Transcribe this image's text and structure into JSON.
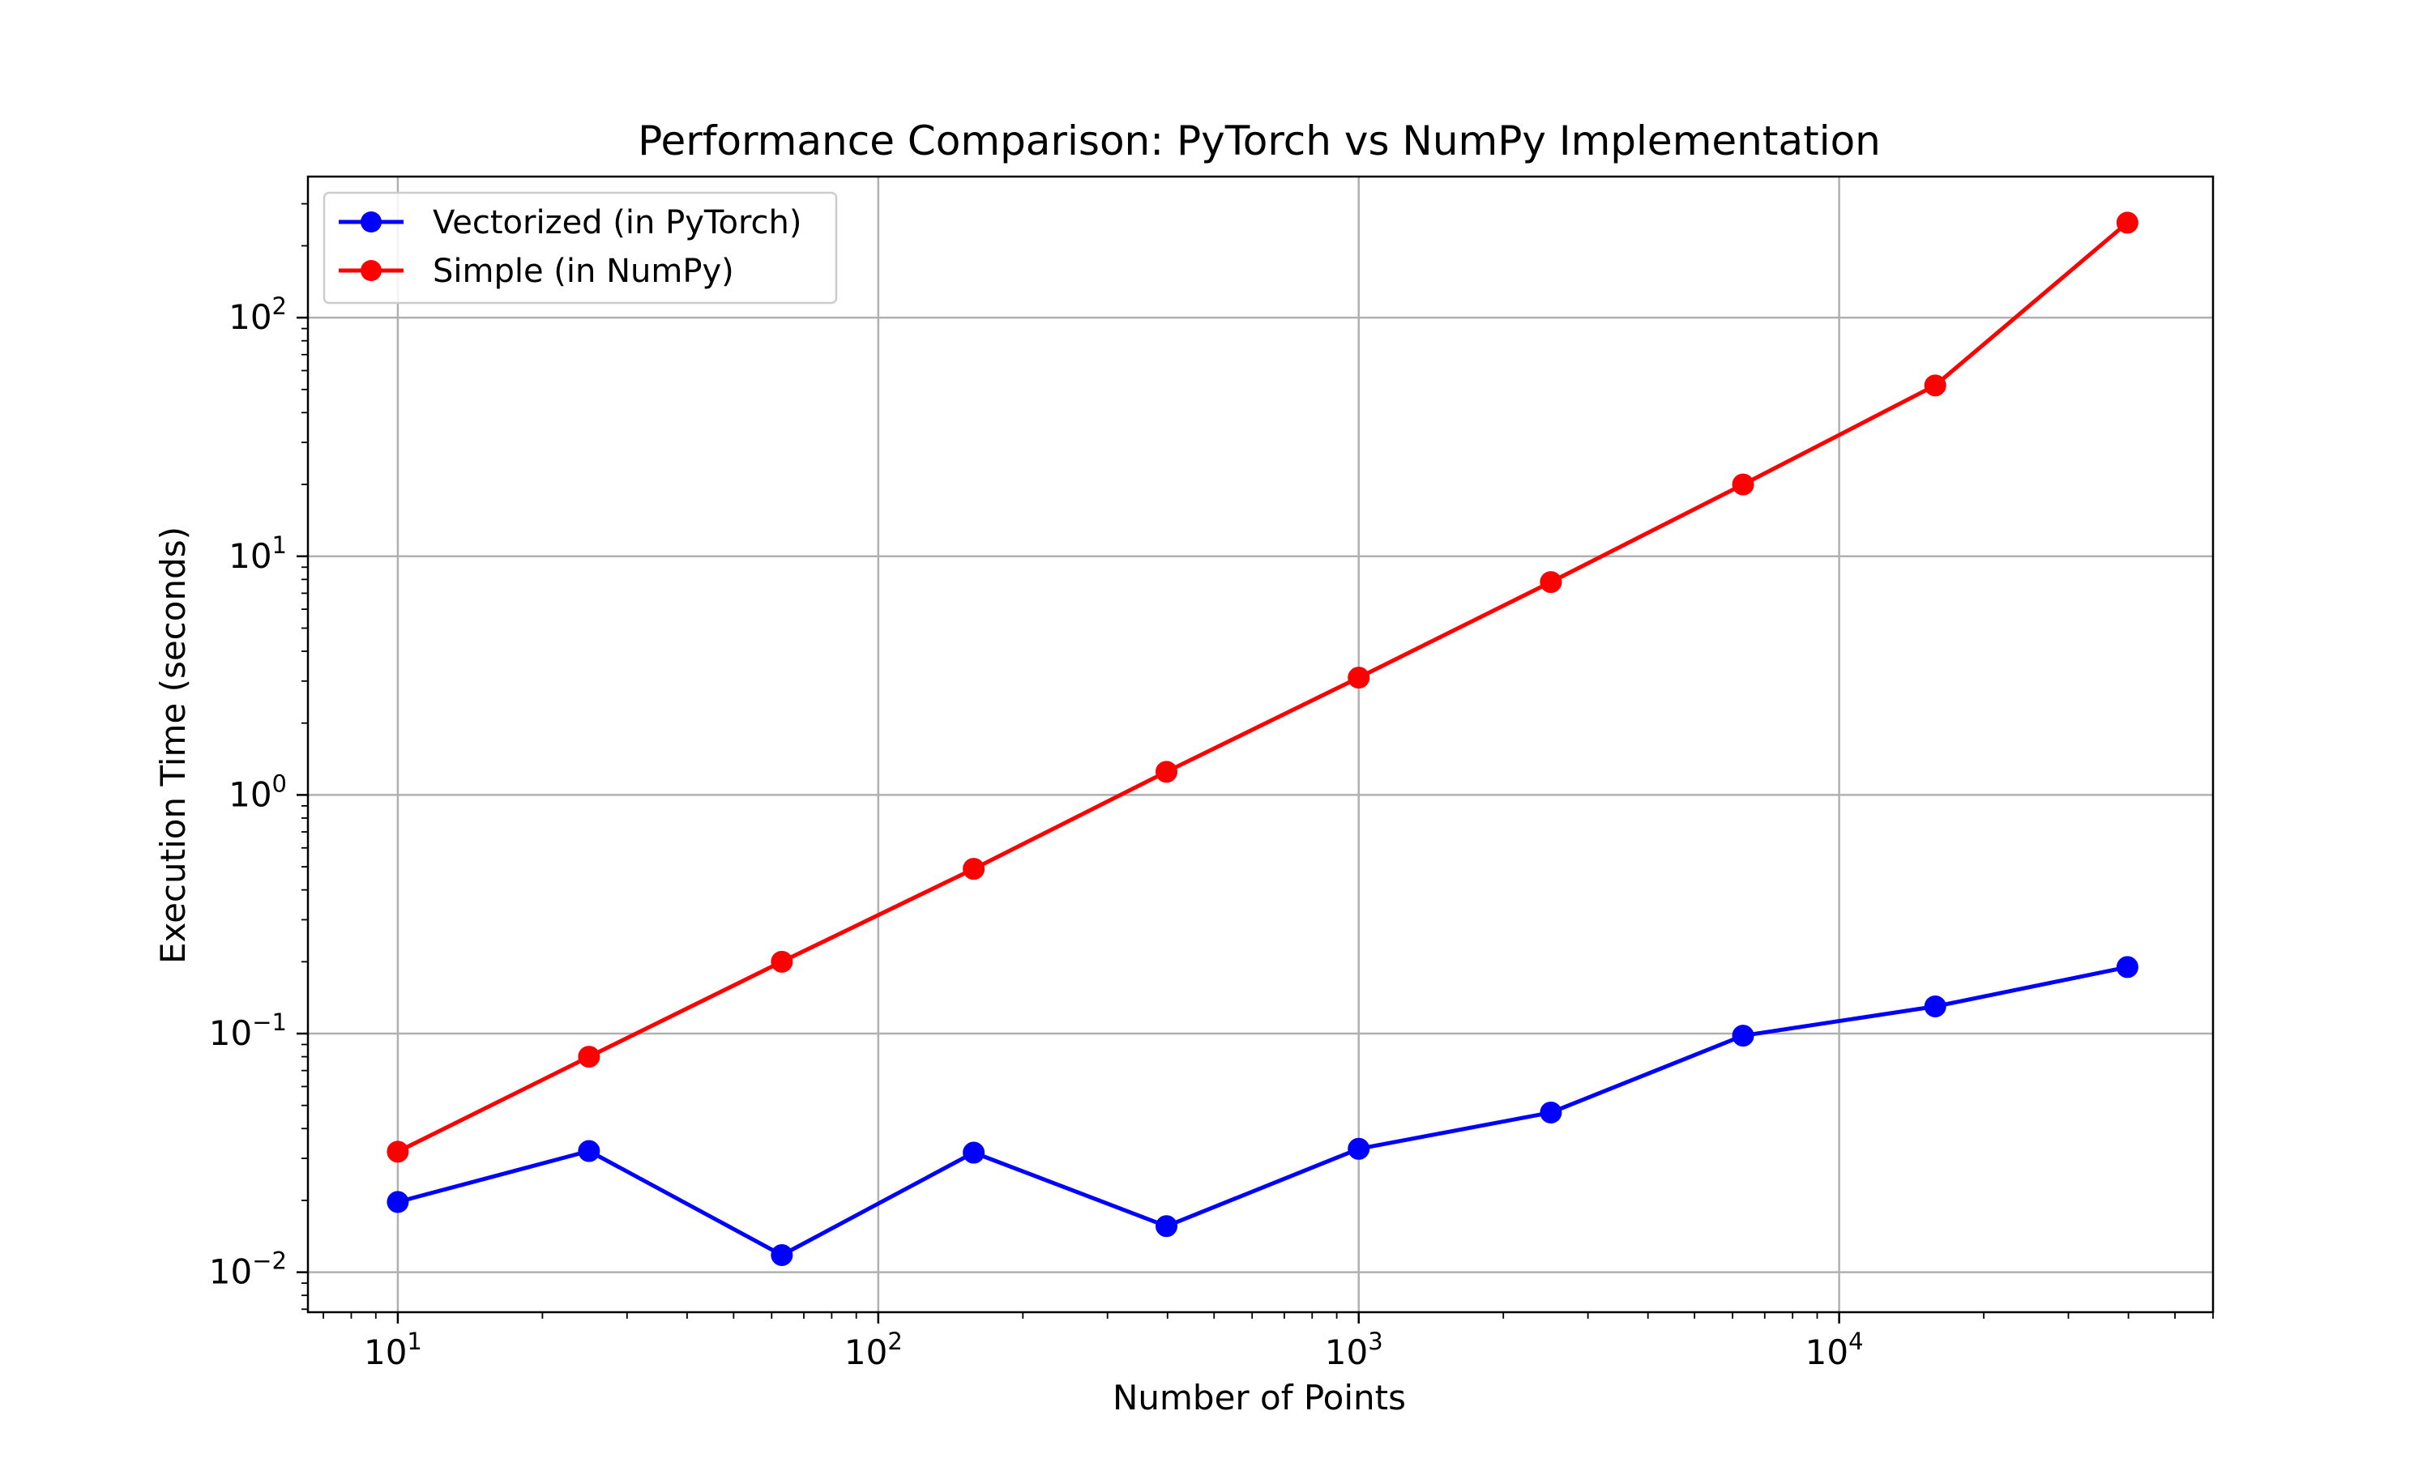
{
  "chart_data": {
    "type": "line",
    "title": "Performance Comparison: PyTorch vs NumPy Implementation",
    "xlabel": "Number of Points",
    "ylabel": "Execution Time (seconds)",
    "x_scale": "log",
    "y_scale": "log",
    "xlim": [
      6.5,
      60000
    ],
    "ylim": [
      0.0068,
      390
    ],
    "grid": true,
    "legend_position": "top-left",
    "x_ticks": [
      {
        "value": 10,
        "base": "10",
        "exp": "1"
      },
      {
        "value": 100,
        "base": "10",
        "exp": "2"
      },
      {
        "value": 1000,
        "base": "10",
        "exp": "3"
      },
      {
        "value": 10000,
        "base": "10",
        "exp": "4"
      }
    ],
    "y_ticks": [
      {
        "value": 0.01,
        "base": "10",
        "exp": "−2"
      },
      {
        "value": 0.1,
        "base": "10",
        "exp": "−1"
      },
      {
        "value": 1,
        "base": "10",
        "exp": "0"
      },
      {
        "value": 10,
        "base": "10",
        "exp": "1"
      },
      {
        "value": 100,
        "base": "10",
        "exp": "2"
      }
    ],
    "x": [
      10,
      25,
      63,
      158,
      398,
      1000,
      2512,
      6310,
      15849,
      39811
    ],
    "series": [
      {
        "name": "Vectorized (in PyTorch)",
        "color": "#0000ff",
        "marker": "circle",
        "values": [
          0.0197,
          0.0322,
          0.0118,
          0.0317,
          0.0156,
          0.0329,
          0.0467,
          0.098,
          0.13,
          0.19
        ]
      },
      {
        "name": "Simple (in NumPy)",
        "color": "#ff0000",
        "marker": "circle",
        "values": [
          0.032,
          0.08,
          0.2,
          0.49,
          1.25,
          3.1,
          7.8,
          20,
          52,
          250
        ]
      }
    ]
  }
}
